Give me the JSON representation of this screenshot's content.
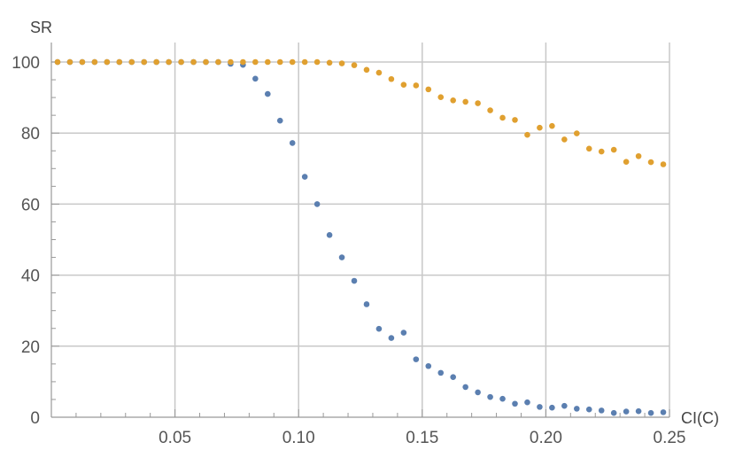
{
  "chart_data": {
    "type": "scatter",
    "xlabel": "CI(C)",
    "ylabel": "SR",
    "xlim": [
      0,
      0.25
    ],
    "ylim": [
      0,
      100
    ],
    "x_ticks": [
      "0.05",
      "0.10",
      "0.15",
      "0.20",
      "0.25"
    ],
    "x_tick_values": [
      0.05,
      0.1,
      0.15,
      0.2,
      0.25
    ],
    "y_ticks": [
      "0",
      "20",
      "40",
      "60",
      "80",
      "100"
    ],
    "y_tick_values": [
      0,
      20,
      40,
      60,
      80,
      100
    ],
    "grid": true,
    "colors": {
      "series_1": "#5b7fb0",
      "series_2": "#e0a030",
      "grid": "#c8c8c8",
      "axis": "#999999"
    },
    "series": [
      {
        "points": [
          [
            0.0025,
            100
          ],
          [
            0.0075,
            100
          ],
          [
            0.0125,
            100
          ],
          [
            0.0175,
            100
          ],
          [
            0.0225,
            100
          ],
          [
            0.0275,
            100
          ],
          [
            0.0325,
            100
          ],
          [
            0.0375,
            100
          ],
          [
            0.0425,
            100
          ],
          [
            0.0475,
            100
          ],
          [
            0.0525,
            100
          ],
          [
            0.0575,
            100
          ],
          [
            0.0625,
            100
          ],
          [
            0.0675,
            100
          ],
          [
            0.0725,
            99.5
          ],
          [
            0.0775,
            99.2
          ],
          [
            0.0825,
            95.3
          ],
          [
            0.0875,
            91
          ],
          [
            0.0925,
            83.5
          ],
          [
            0.0975,
            77.2
          ],
          [
            0.1025,
            67.7
          ],
          [
            0.1075,
            60
          ],
          [
            0.1125,
            51.3
          ],
          [
            0.1175,
            45
          ],
          [
            0.1225,
            38.4
          ],
          [
            0.1275,
            31.8
          ],
          [
            0.1325,
            24.9
          ],
          [
            0.1375,
            22.3
          ],
          [
            0.1425,
            23.8
          ],
          [
            0.1475,
            16.3
          ],
          [
            0.1525,
            14.4
          ],
          [
            0.1575,
            12.5
          ],
          [
            0.1625,
            11.3
          ],
          [
            0.1675,
            8.5
          ],
          [
            0.1725,
            7
          ],
          [
            0.1775,
            5.7
          ],
          [
            0.1825,
            5.2
          ],
          [
            0.1875,
            3.8
          ],
          [
            0.1925,
            4.2
          ],
          [
            0.1975,
            2.9
          ],
          [
            0.2025,
            2.7
          ],
          [
            0.2075,
            3.2
          ],
          [
            0.2125,
            2.4
          ],
          [
            0.2175,
            2.2
          ],
          [
            0.2225,
            1.9
          ],
          [
            0.2275,
            1.2
          ],
          [
            0.2325,
            1.6
          ],
          [
            0.2375,
            1.7
          ],
          [
            0.2425,
            1.2
          ],
          [
            0.2475,
            1.4
          ]
        ]
      },
      {
        "points": [
          [
            0.0025,
            100
          ],
          [
            0.0075,
            100
          ],
          [
            0.0125,
            100
          ],
          [
            0.0175,
            100
          ],
          [
            0.0225,
            100
          ],
          [
            0.0275,
            100
          ],
          [
            0.0325,
            100
          ],
          [
            0.0375,
            100
          ],
          [
            0.0425,
            100
          ],
          [
            0.0475,
            100
          ],
          [
            0.0525,
            100
          ],
          [
            0.0575,
            100
          ],
          [
            0.0625,
            100
          ],
          [
            0.0675,
            100
          ],
          [
            0.0725,
            100
          ],
          [
            0.0775,
            100
          ],
          [
            0.0825,
            100
          ],
          [
            0.0875,
            100
          ],
          [
            0.0925,
            100
          ],
          [
            0.0975,
            100
          ],
          [
            0.1025,
            100
          ],
          [
            0.1075,
            100
          ],
          [
            0.1125,
            99.8
          ],
          [
            0.1175,
            99.6
          ],
          [
            0.1225,
            99.1
          ],
          [
            0.1275,
            97.8
          ],
          [
            0.1325,
            97
          ],
          [
            0.1375,
            95.2
          ],
          [
            0.1425,
            93.6
          ],
          [
            0.1475,
            93.4
          ],
          [
            0.1525,
            92.3
          ],
          [
            0.1575,
            90.1
          ],
          [
            0.1625,
            89.2
          ],
          [
            0.1675,
            88.8
          ],
          [
            0.1725,
            88.4
          ],
          [
            0.1775,
            86.4
          ],
          [
            0.1825,
            84.3
          ],
          [
            0.1875,
            83.7
          ],
          [
            0.1925,
            79.5
          ],
          [
            0.1975,
            81.5
          ],
          [
            0.2025,
            82
          ],
          [
            0.2075,
            78.2
          ],
          [
            0.2125,
            79.9
          ],
          [
            0.2175,
            75.6
          ],
          [
            0.2225,
            74.8
          ],
          [
            0.2275,
            75.3
          ],
          [
            0.2325,
            71.9
          ],
          [
            0.2375,
            73.5
          ],
          [
            0.2425,
            71.8
          ],
          [
            0.2475,
            71.2
          ]
        ]
      }
    ]
  }
}
